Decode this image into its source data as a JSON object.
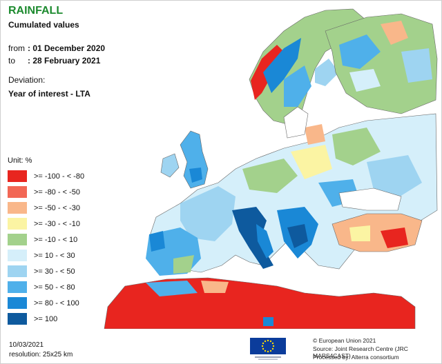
{
  "header": {
    "title": "RAINFALL",
    "subtitle": "Cumulated values",
    "from_label": "from",
    "from_value": ": 01 December 2020",
    "to_label": "to",
    "to_value": ": 28 February 2021",
    "deviation_label": "Deviation:",
    "deviation_value": "Year of interest - LTA"
  },
  "legend": {
    "unit": "Unit:  %",
    "classes": [
      {
        "label": ">= -100 - < -80",
        "color": "#e8251f"
      },
      {
        "label": ">= -80 - < -50",
        "color": "#f26755"
      },
      {
        "label": ">= -50 - < -30",
        "color": "#f9b78a"
      },
      {
        "label": ">= -30 - < -10",
        "color": "#fbf4a3"
      },
      {
        "label": ">= -10 - < 10",
        "color": "#a3d18c"
      },
      {
        "label": ">= 10 - < 30",
        "color": "#d5effa"
      },
      {
        "label": ">= 30 - < 50",
        "color": "#9ed4f1"
      },
      {
        "label": ">= 50 - < 80",
        "color": "#4fb0ea"
      },
      {
        "label": ">= 80 - < 100",
        "color": "#1a88d6"
      },
      {
        "label": ">= 100",
        "color": "#0e5a9e"
      }
    ]
  },
  "footer": {
    "date": "10/03/2021",
    "resolution": "resolution:  25x25 km",
    "copyright": "© European Union 2021",
    "source": "Source: Joint Research Centre (JRC MARS4CAST)",
    "processed": "Processed by: Alterra consortium"
  },
  "colors": {
    "sea": "#ffffff",
    "border": "#666666",
    "title_green": "#1c8a2e",
    "eu_blue": "#0b3c9b",
    "eu_star": "#ffdd00"
  }
}
